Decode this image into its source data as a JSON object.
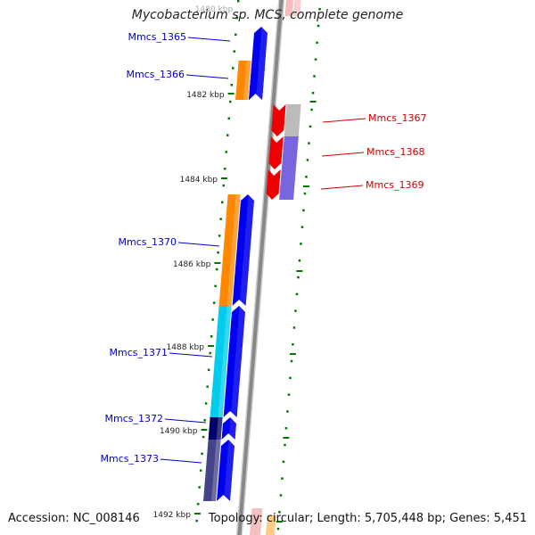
{
  "title": "Mycobacterium sp. MCS, complete genome",
  "footer": {
    "accession": "Accession: NC_008146",
    "summary": "Topology: circular; Length: 5,705,448 bp; Genes: 5,451"
  },
  "colors": {
    "plus_strand": "#0000ee",
    "minus_strand": "#ee0000",
    "backbone": "#888888",
    "tick": "#007700"
  },
  "ticks": [
    {
      "label": "1480 kbp",
      "faded": true
    },
    {
      "label": "1482 kbp"
    },
    {
      "label": "1484 kbp"
    },
    {
      "label": "1486 kbp"
    },
    {
      "label": "1488 kbp"
    },
    {
      "label": "1490 kbp"
    },
    {
      "label": "1492 kbp"
    }
  ],
  "genes": [
    {
      "name": "Mmcs_1365",
      "strand": "plus",
      "color": "#0000ee",
      "label_color": "#0000cc",
      "cog": null
    },
    {
      "name": "Mmcs_1366",
      "strand": "plus",
      "color": "#0000ee",
      "label_color": "#0000cc",
      "cog": "#ff8800"
    },
    {
      "name": "Mmcs_1367",
      "strand": "minus",
      "color": "#ee0000",
      "label_color": "#cc0000",
      "cog": "#bbbbbb"
    },
    {
      "name": "Mmcs_1368",
      "strand": "minus",
      "color": "#ee0000",
      "label_color": "#cc0000",
      "cog": "#7766dd"
    },
    {
      "name": "Mmcs_1369",
      "strand": "minus",
      "color": "#ee0000",
      "label_color": "#cc0000",
      "cog": "#7766dd"
    },
    {
      "name": "Mmcs_1370",
      "strand": "plus",
      "color": "#0000ee",
      "label_color": "#0000cc",
      "cog": "#ff8800"
    },
    {
      "name": "Mmcs_1371",
      "strand": "plus",
      "color": "#0000ee",
      "label_color": "#0000cc",
      "cog": "#00ccee"
    },
    {
      "name": "Mmcs_1372",
      "strand": "plus",
      "color": "#0000ee",
      "label_color": "#0000cc",
      "cog": "#000066"
    },
    {
      "name": "Mmcs_1373",
      "strand": "plus",
      "color": "#0000ee",
      "label_color": "#0000cc",
      "cog": "#444488"
    }
  ]
}
